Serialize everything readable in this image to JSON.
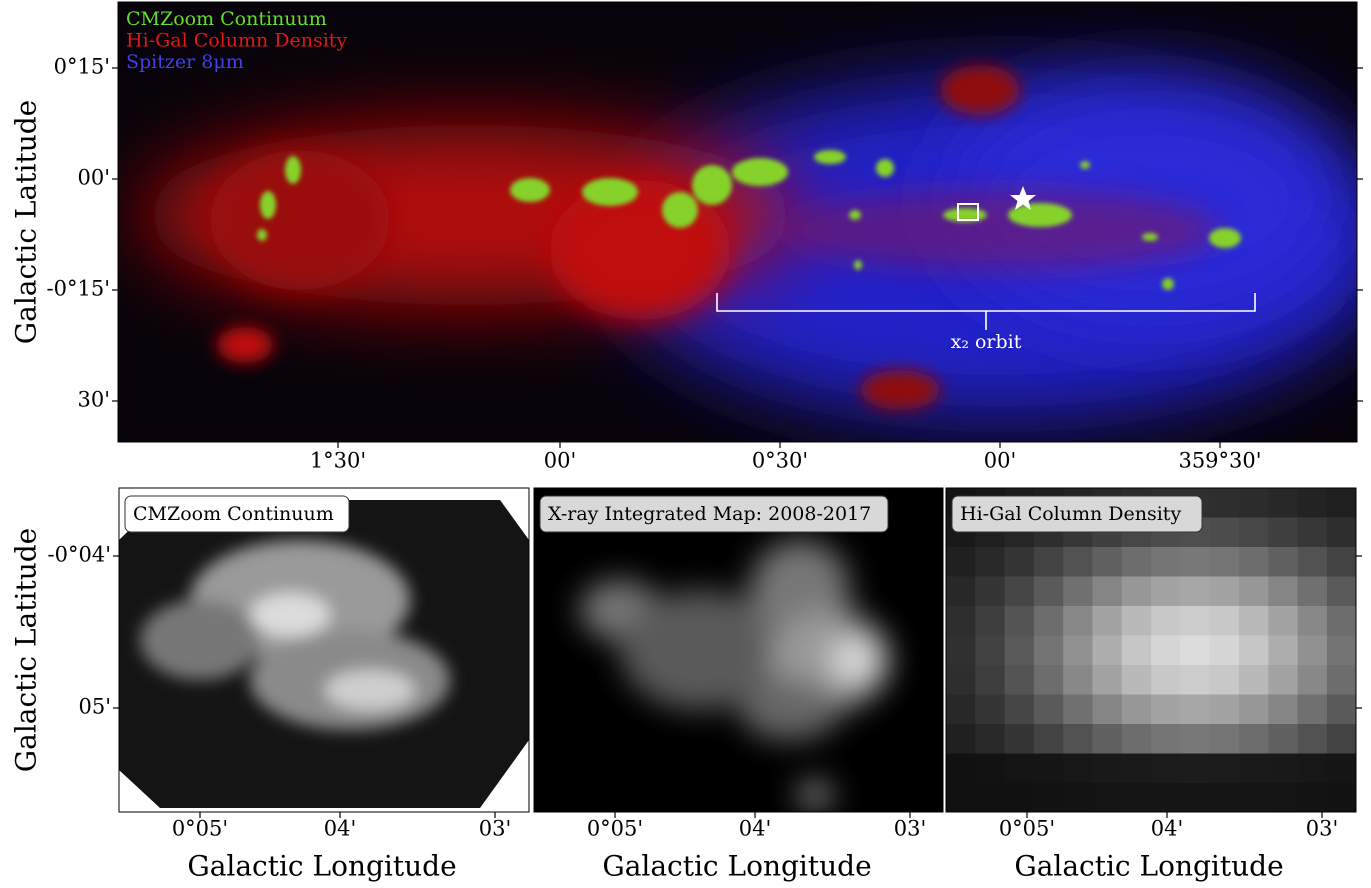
{
  "top_panel": {
    "y_label": "Galactic Latitude",
    "yticks": [
      "0°15'",
      "00'",
      "-0°15'",
      "30'"
    ],
    "xticks": [
      "1°30'",
      "00'",
      "0°30'",
      "00'",
      "359°30'"
    ],
    "legend": [
      "CMZoom Continuum",
      "Hi-Gal Column Density",
      "Spitzer 8μm"
    ],
    "annotation": "x₂ orbit"
  },
  "bottom_y_label": "Galactic Latitude",
  "bottom_yticks": [
    "-0°04'",
    "05'"
  ],
  "bottom_panels": [
    {
      "title": "CMZoom Continuum",
      "xticks": [
        "0°05'",
        "04'",
        "03'"
      ],
      "x_label": "Galactic Longitude"
    },
    {
      "title": "X-ray Integrated Map: 2008-2017",
      "xticks": [
        "0°05'",
        "04'",
        "03'"
      ],
      "x_label": "Galactic Longitude"
    },
    {
      "title": "Hi-Gal Column Density",
      "xticks": [
        "0°05'",
        "04'",
        "03'"
      ],
      "x_label": "Galactic Longitude"
    }
  ]
}
